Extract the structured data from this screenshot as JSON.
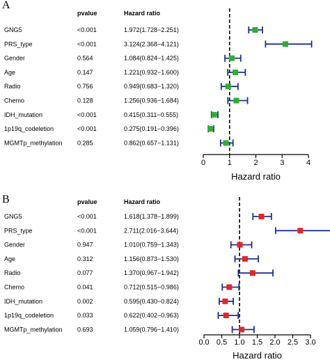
{
  "chart_data": [
    {
      "type": "forest",
      "panel_label": "A",
      "header_pvalue": "pvalue",
      "header_hr": "Hazard ratio",
      "xlabel": "Hazard ratio",
      "xlim": [
        0,
        4
      ],
      "xticks": [
        "0",
        "1",
        "2",
        "3",
        "4"
      ],
      "reference_line": 1,
      "marker_color": "#2bb12b",
      "line_color": "#1f2f8f",
      "rows": [
        {
          "variable": "GNG5",
          "pvalue": "<0.001",
          "hr_text": "1.972(1.728−2.251)",
          "hr": 1.972,
          "lower": 1.728,
          "upper": 2.251
        },
        {
          "variable": "PRS_type",
          "pvalue": "<0.001",
          "hr_text": "3.124(2.368−4.121)",
          "hr": 3.124,
          "lower": 2.368,
          "upper": 4.121
        },
        {
          "variable": "Gender",
          "pvalue": "0.564",
          "hr_text": "1.084(0.824−1.425)",
          "hr": 1.084,
          "lower": 0.824,
          "upper": 1.425
        },
        {
          "variable": "Age",
          "pvalue": "0.147",
          "hr_text": "1.221(0.932−1.600)",
          "hr": 1.221,
          "lower": 0.932,
          "upper": 1.6
        },
        {
          "variable": "Radio",
          "pvalue": "0.756",
          "hr_text": "0.949(0.683−1.320)",
          "hr": 0.949,
          "lower": 0.683,
          "upper": 1.32
        },
        {
          "variable": "Chemo",
          "pvalue": "0.128",
          "hr_text": "1.256(0.936−1.684)",
          "hr": 1.256,
          "lower": 0.936,
          "upper": 1.684
        },
        {
          "variable": "IDH_mutation",
          "pvalue": "<0.001",
          "hr_text": "0.415(0.311−0.555)",
          "hr": 0.415,
          "lower": 0.311,
          "upper": 0.555
        },
        {
          "variable": "1p19q_codeletion",
          "pvalue": "<0.001",
          "hr_text": "0.275(0.191−0.396)",
          "hr": 0.275,
          "lower": 0.191,
          "upper": 0.396
        },
        {
          "variable": "MGMTp_methylation",
          "pvalue": "0.285",
          "hr_text": "0.862(0.657−1.131)",
          "hr": 0.862,
          "lower": 0.657,
          "upper": 1.131
        }
      ]
    },
    {
      "type": "forest",
      "panel_label": "B",
      "header_pvalue": "pvalue",
      "header_hr": "Hazard ratio",
      "xlabel": "Hazard ratio",
      "xlim": [
        0,
        3
      ],
      "xticks": [
        "0.0",
        "0.5",
        "1.0",
        "1.5",
        "2.0",
        "2.5",
        "3.0"
      ],
      "reference_line": 1,
      "marker_color": "#e32626",
      "line_color": "#1f2f8f",
      "rows": [
        {
          "variable": "GNG5",
          "pvalue": "<0.001",
          "hr_text": "1.618(1.378−1.899)",
          "hr": 1.618,
          "lower": 1.378,
          "upper": 1.899
        },
        {
          "variable": "PRS_type",
          "pvalue": "<0.001",
          "hr_text": "2.711(2.016−3.644)",
          "hr": 2.711,
          "lower": 2.016,
          "upper": 3.644
        },
        {
          "variable": "Gender",
          "pvalue": "0.947",
          "hr_text": "1.010(0.759−1.343)",
          "hr": 1.01,
          "lower": 0.759,
          "upper": 1.343
        },
        {
          "variable": "Age",
          "pvalue": "0.312",
          "hr_text": "1.156(0.873−1.530)",
          "hr": 1.156,
          "lower": 0.873,
          "upper": 1.53
        },
        {
          "variable": "Radio",
          "pvalue": "0.077",
          "hr_text": "1.370(0.967−1.942)",
          "hr": 1.37,
          "lower": 0.967,
          "upper": 1.942
        },
        {
          "variable": "Chemo",
          "pvalue": "0.041",
          "hr_text": "0.712(0.515−0.986)",
          "hr": 0.712,
          "lower": 0.515,
          "upper": 0.986
        },
        {
          "variable": "IDH_mutation",
          "pvalue": "0.002",
          "hr_text": "0.595(0.430−0.824)",
          "hr": 0.595,
          "lower": 0.43,
          "upper": 0.824
        },
        {
          "variable": "1p19q_codeletion",
          "pvalue": "0.033",
          "hr_text": "0.622(0.402−0.963)",
          "hr": 0.622,
          "lower": 0.402,
          "upper": 0.963
        },
        {
          "variable": "MGMTp_methylation",
          "pvalue": "0.693",
          "hr_text": "1.059(0.796−1.410)",
          "hr": 1.059,
          "lower": 0.796,
          "upper": 1.41
        }
      ]
    }
  ]
}
